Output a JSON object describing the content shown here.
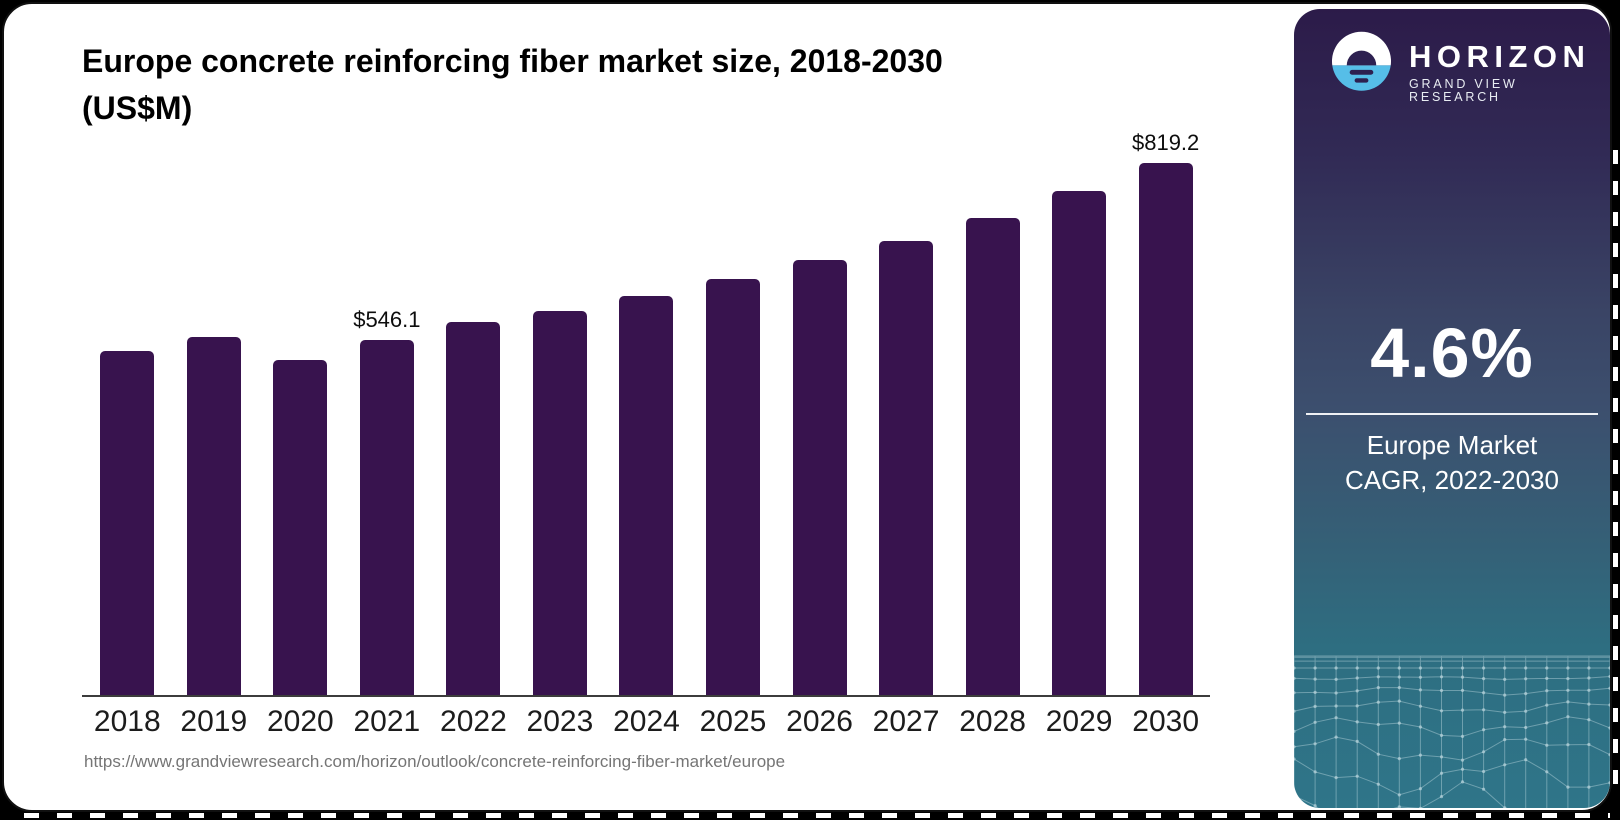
{
  "header": {
    "title_line1": "Europe concrete reinforcing fiber market size, 2018-2030",
    "title_line2": "(US$M)"
  },
  "chart_data": {
    "type": "bar",
    "title": "Europe concrete reinforcing fiber market size, 2018-2030 (US$M)",
    "unit": "US$M",
    "categories": [
      "2018",
      "2019",
      "2020",
      "2021",
      "2022",
      "2023",
      "2024",
      "2025",
      "2026",
      "2027",
      "2028",
      "2029",
      "2030"
    ],
    "values": [
      530.5,
      550.6,
      516.2,
      546.1,
      574.1,
      592.1,
      615.2,
      640.9,
      670.2,
      699.9,
      734.3,
      775.4,
      819.2
    ],
    "data_labels": {
      "2021": "$546.1",
      "2030": "$819.2"
    },
    "ylim": [
      0,
      860
    ],
    "bar_color": "#38134E",
    "gridlines": false,
    "legend": "none",
    "xlabel": "",
    "ylabel": ""
  },
  "source_url": "https://www.grandviewresearch.com/horizon/outlook/concrete-reinforcing-fiber-market/europe",
  "sidebar": {
    "logo": {
      "brand": "HORIZON",
      "subtitle": "GRAND VIEW RESEARCH"
    },
    "stat": {
      "value": "4.6%",
      "caption_line1": "Europe Market",
      "caption_line2": "CAGR, 2022-2030"
    }
  },
  "colors": {
    "bar": "#38134E",
    "logo_blue": "#56BEE8",
    "logo_dark": "#2D2050",
    "sidebar_top": "#2C1B49",
    "sidebar_bottom": "#2F7589",
    "axis": "#3C3C3C",
    "source_text": "#757575"
  }
}
